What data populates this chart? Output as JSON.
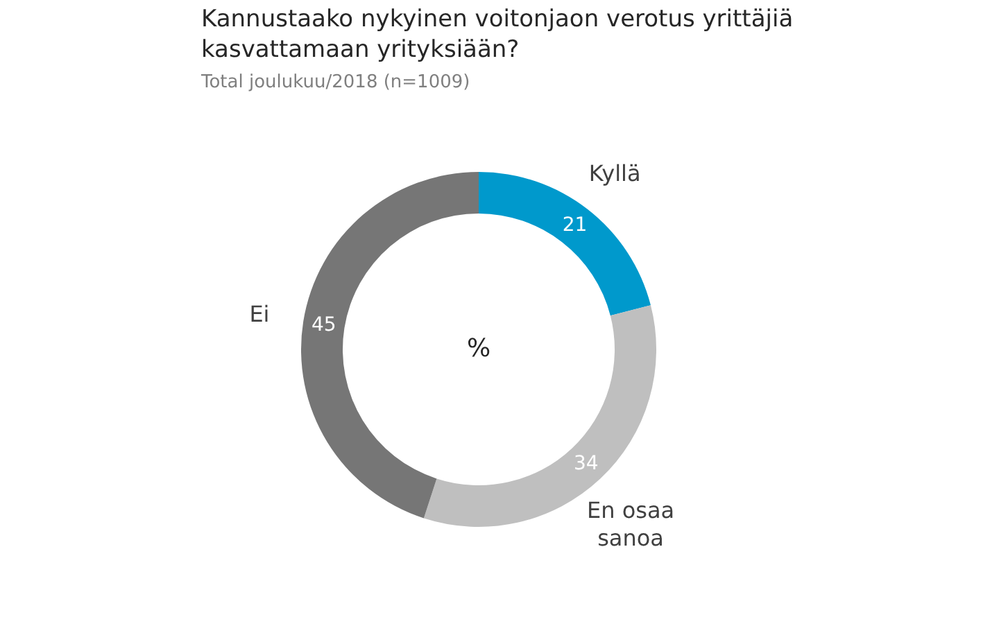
{
  "chart_data": {
    "type": "donut",
    "title": "Kannustaako nykyinen voitonjaon verotus yrittäjiä kasvattamaan yrityksiään?",
    "subtitle": "Total joulukuu/2018 (n=1009)",
    "categories": [
      "Kyllä",
      "En osaa sanoa",
      "Ei"
    ],
    "values": [
      21,
      34,
      45
    ],
    "colors": [
      "#0099cc",
      "#bfbfbf",
      "#767676"
    ],
    "data_labels": true,
    "annotations": [
      "%"
    ]
  }
}
